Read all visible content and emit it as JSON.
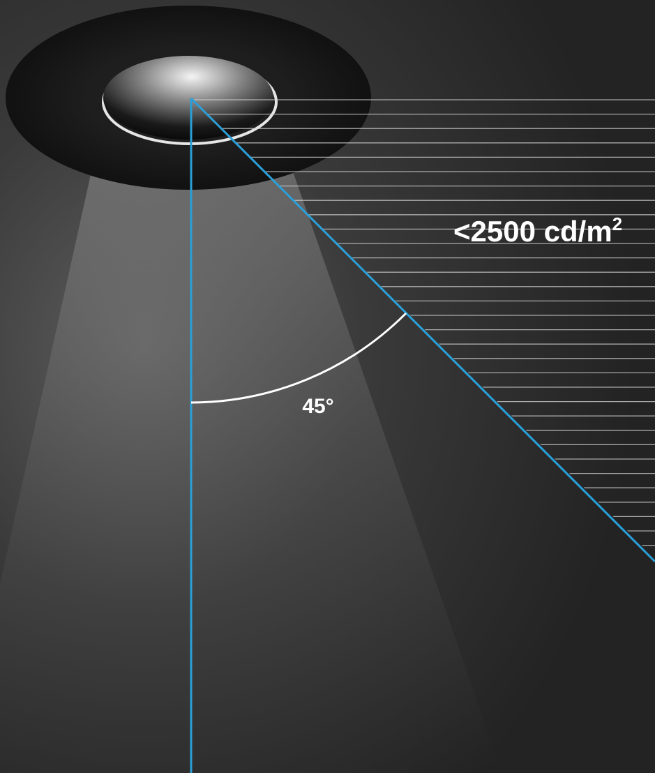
{
  "luminance": {
    "prefix": "<2500 cd/m",
    "superscript": "2"
  },
  "angle": {
    "label": "45°",
    "degrees": 45
  },
  "hatched_zone": {
    "description_visible": false
  },
  "colors": {
    "background": "#2b2b2b",
    "ceiling_ring": "#161616",
    "guide_line": "#2a9fd8",
    "hatch_line": "#d6d6d6",
    "text": "#ffffff"
  },
  "icons": {
    "downlight": "recessed-downlight-icon"
  }
}
